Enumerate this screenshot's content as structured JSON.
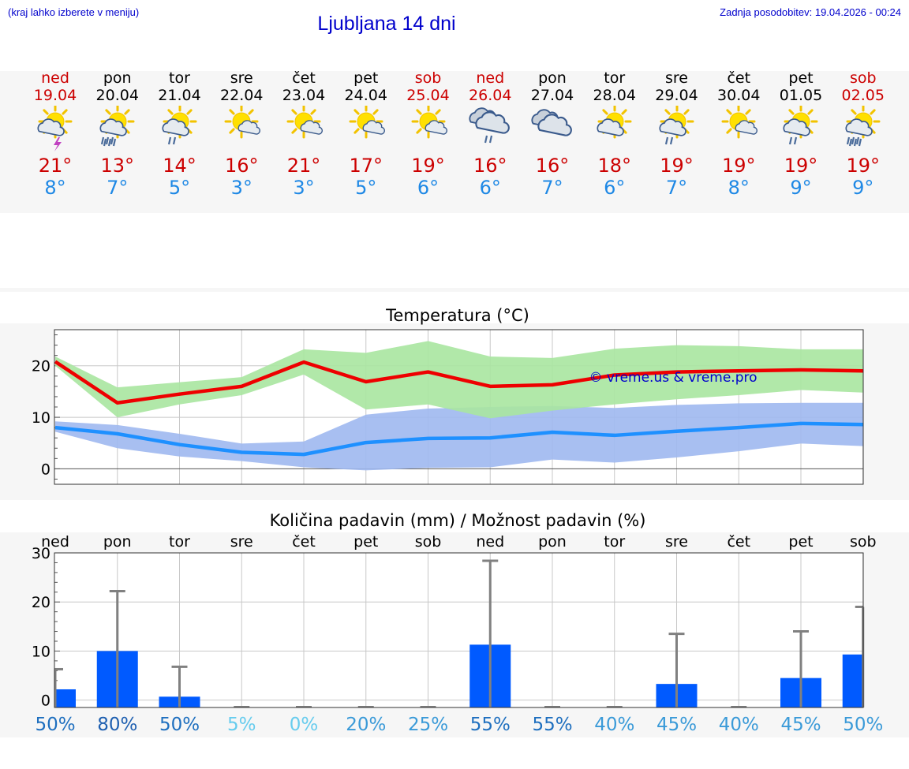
{
  "header": {
    "hint": "(kraj lahko izberete v meniju)",
    "title": "Ljubljana 14 dni",
    "updated": "Zadnja posodobitev: 19.04.2026 - 00:24"
  },
  "colors": {
    "weekend": "#cc0000",
    "weekday": "#000000",
    "tmax": "#cc0000",
    "tmin": "#1e88e5",
    "max_line": "#ee0000",
    "max_band": "#a8e6a0",
    "min_line": "#1e90ff",
    "min_band": "#9fb8f0",
    "bar": "#005aff",
    "watermark": "#0000cc"
  },
  "days": [
    {
      "name": "ned",
      "date": "19.04",
      "weekend": true,
      "icon": "sun-cloud-storm-icon",
      "tmax": "21°",
      "tmin": "8°"
    },
    {
      "name": "pon",
      "date": "20.04",
      "weekend": false,
      "icon": "sun-cloud-rain-icon",
      "tmax": "13°",
      "tmin": "7°"
    },
    {
      "name": "tor",
      "date": "21.04",
      "weekend": false,
      "icon": "sun-cloud-light-rain-icon",
      "tmax": "14°",
      "tmin": "5°"
    },
    {
      "name": "sre",
      "date": "22.04",
      "weekend": false,
      "icon": "sun-small-cloud-icon",
      "tmax": "16°",
      "tmin": "3°"
    },
    {
      "name": "čet",
      "date": "23.04",
      "weekend": false,
      "icon": "sun-small-cloud-icon",
      "tmax": "21°",
      "tmin": "3°"
    },
    {
      "name": "pet",
      "date": "24.04",
      "weekend": false,
      "icon": "sun-small-cloud-icon",
      "tmax": "17°",
      "tmin": "5°"
    },
    {
      "name": "sob",
      "date": "25.04",
      "weekend": true,
      "icon": "sun-small-cloud-icon",
      "tmax": "19°",
      "tmin": "6°"
    },
    {
      "name": "ned",
      "date": "26.04",
      "weekend": true,
      "icon": "cloud-light-rain-icon",
      "tmax": "16°",
      "tmin": "6°"
    },
    {
      "name": "pon",
      "date": "27.04",
      "weekend": false,
      "icon": "cloudy-icon",
      "tmax": "16°",
      "tmin": "7°"
    },
    {
      "name": "tor",
      "date": "28.04",
      "weekend": false,
      "icon": "sun-cloud-icon",
      "tmax": "18°",
      "tmin": "6°"
    },
    {
      "name": "sre",
      "date": "29.04",
      "weekend": false,
      "icon": "sun-cloud-light-rain-icon",
      "tmax": "19°",
      "tmin": "7°"
    },
    {
      "name": "čet",
      "date": "30.04",
      "weekend": false,
      "icon": "sun-small-cloud-icon",
      "tmax": "19°",
      "tmin": "8°"
    },
    {
      "name": "pet",
      "date": "01.05",
      "weekend": false,
      "icon": "sun-cloud-light-rain-icon",
      "tmax": "19°",
      "tmin": "9°"
    },
    {
      "name": "sob",
      "date": "02.05",
      "weekend": true,
      "icon": "sun-cloud-rain-icon",
      "tmax": "19°",
      "tmin": "9°"
    }
  ],
  "chart_data": [
    {
      "type": "line",
      "title": "Temperatura (°C)",
      "x": [
        0,
        1,
        2,
        3,
        4,
        5,
        6,
        7,
        8,
        9,
        10,
        11,
        12,
        13
      ],
      "ylim": [
        -3,
        27
      ],
      "yticks": [
        "0",
        "10",
        "20"
      ],
      "ytick_values": [
        0,
        10,
        20
      ],
      "watermark": "© vreme.us & vreme.pro",
      "series": [
        {
          "name": "max",
          "values": [
            20.8,
            12.8,
            14.5,
            16.0,
            20.7,
            16.9,
            18.8,
            16.0,
            16.3,
            18.2,
            18.8,
            19.0,
            19.2,
            19.0
          ],
          "band_low": [
            20.0,
            10.0,
            12.5,
            14.3,
            18.3,
            11.5,
            12.5,
            9.8,
            11.3,
            12.5,
            13.5,
            14.3,
            15.3,
            14.8
          ],
          "band_high": [
            21.8,
            15.8,
            16.8,
            17.8,
            23.2,
            22.5,
            24.8,
            21.8,
            21.5,
            23.3,
            24.0,
            23.8,
            23.2,
            23.2
          ]
        },
        {
          "name": "min",
          "values": [
            8.0,
            6.8,
            4.7,
            3.2,
            2.8,
            5.1,
            5.9,
            6.0,
            7.1,
            6.5,
            7.3,
            8.0,
            8.8,
            8.6
          ],
          "band_low": [
            7.2,
            4.0,
            2.4,
            1.5,
            0.3,
            -0.3,
            0.2,
            0.3,
            1.8,
            1.2,
            2.2,
            3.4,
            4.9,
            4.4
          ],
          "band_high": [
            9.2,
            8.5,
            6.8,
            4.9,
            5.3,
            10.5,
            11.7,
            12.0,
            12.2,
            11.8,
            12.4,
            12.7,
            12.8,
            12.8
          ]
        }
      ]
    },
    {
      "type": "bar",
      "title": "Količina padavin (mm) / Možnost padavin (%)",
      "categories": [
        "ned",
        "pon",
        "tor",
        "sre",
        "čet",
        "pet",
        "sob",
        "ned",
        "pon",
        "tor",
        "sre",
        "čet",
        "pet",
        "sob"
      ],
      "values": [
        2.2,
        10.0,
        0.7,
        0,
        0,
        0,
        0,
        11.3,
        0,
        0,
        3.3,
        0,
        4.5,
        9.3
      ],
      "error_high": [
        6.3,
        22.2,
        6.8,
        0,
        0,
        0,
        0,
        28.4,
        0,
        0,
        13.5,
        0,
        14.0,
        19.0
      ],
      "ylim": [
        -1.5,
        30
      ],
      "yticks": [
        "0",
        "10",
        "20",
        "30"
      ],
      "ytick_values": [
        0,
        10,
        20,
        30
      ],
      "probabilities": [
        "50%",
        "80%",
        "50%",
        "5%",
        "0%",
        "20%",
        "25%",
        "55%",
        "55%",
        "40%",
        "45%",
        "40%",
        "45%",
        "50%"
      ],
      "probability_colors": [
        "#1e6fbf",
        "#1e5fb0",
        "#1e6fbf",
        "#66ccee",
        "#66ccee",
        "#3a9ad8",
        "#3a9ad8",
        "#1e6fbf",
        "#1e6fbf",
        "#3a9ad8",
        "#3a9ad8",
        "#3a9ad8",
        "#3a9ad8",
        "#3a9ad8"
      ]
    }
  ]
}
